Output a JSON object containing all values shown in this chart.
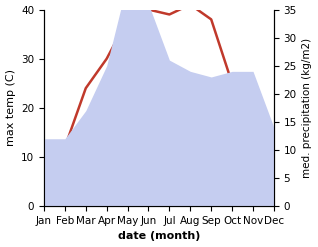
{
  "months": [
    "Jan",
    "Feb",
    "Mar",
    "Apr",
    "May",
    "Jun",
    "Jul",
    "Aug",
    "Sep",
    "Oct",
    "Nov",
    "Dec"
  ],
  "temperature": [
    5,
    12,
    24,
    30,
    38,
    40,
    39,
    41,
    38,
    25,
    18,
    14
  ],
  "precipitation": [
    12,
    12,
    17,
    25,
    40,
    36,
    26,
    24,
    23,
    24,
    24,
    14
  ],
  "temp_color": "#c0392b",
  "precip_color": "#c5cdf0",
  "xlabel": "date (month)",
  "ylabel_left": "max temp (C)",
  "ylabel_right": "med. precipitation (kg/m2)",
  "ylim_left": [
    0,
    40
  ],
  "ylim_right": [
    0,
    35
  ],
  "background_color": "#ffffff",
  "label_fontsize": 8,
  "tick_fontsize": 7.5
}
